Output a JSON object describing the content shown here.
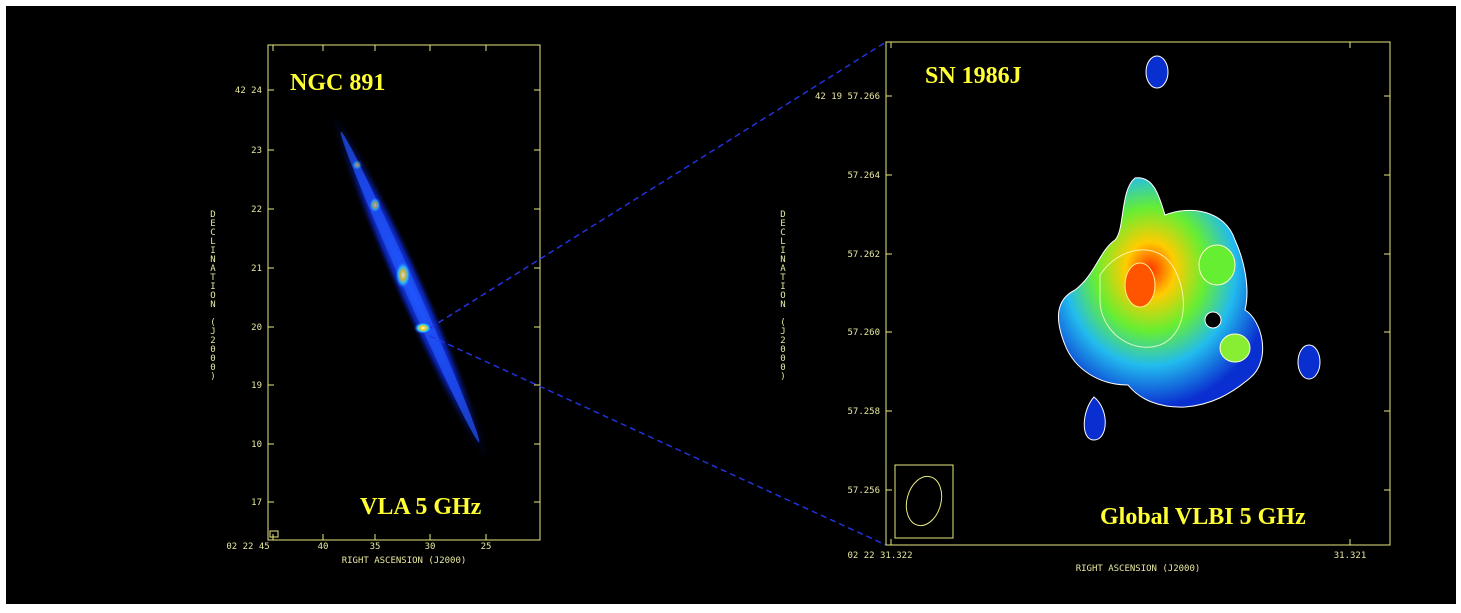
{
  "panels": [
    {
      "title": "NGC 891",
      "caption": "VLA 5 GHz",
      "y_label": "DECLINATION (J2000)",
      "x_label": "RIGHT ASCENSION (J2000)",
      "y_ticks": [
        "42 24",
        "23",
        "22",
        "21",
        "20",
        "19",
        "10",
        "17"
      ],
      "x_ticks": [
        "02 22 45",
        "40",
        "35",
        "30",
        "25"
      ]
    },
    {
      "title": "SN 1986J",
      "caption": "Global VLBI 5 GHz",
      "y_label": "DECLINATION (J2000)",
      "x_label": "RIGHT ASCENSION (J2000)",
      "y_ticks": [
        "42 19 57.266",
        "57.264",
        "57.262",
        "57.260",
        "57.258",
        "57.256"
      ],
      "x_ticks": [
        "02 22 31.322",
        "31.321"
      ]
    }
  ]
}
